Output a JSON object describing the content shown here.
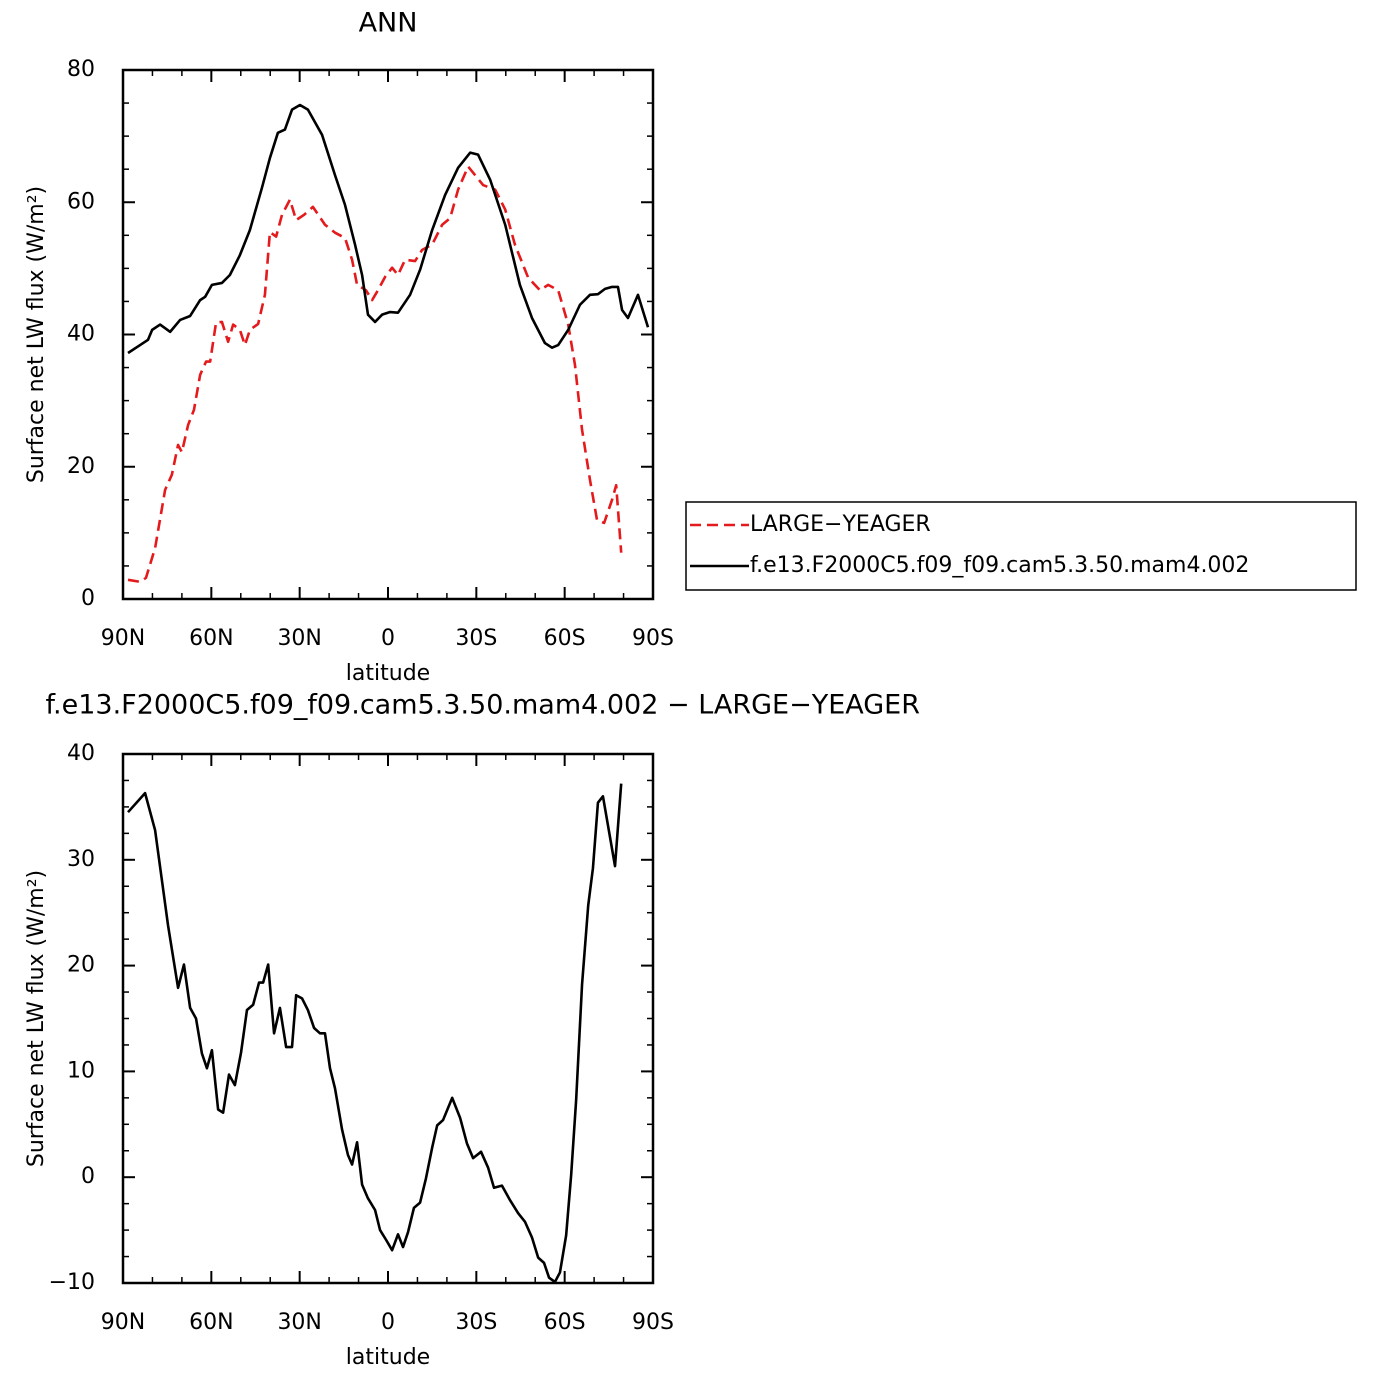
{
  "chart_data": [
    {
      "type": "line",
      "title": "ANN",
      "xlabel": "latitude",
      "ylabel": "Surface net LW flux (W/m²)",
      "xlim": [
        90,
        -90
      ],
      "xticks": [
        {
          "value": 90,
          "label": "90N"
        },
        {
          "value": 60,
          "label": "60N"
        },
        {
          "value": 30,
          "label": "30N"
        },
        0,
        {
          "value": -30,
          "label": "30S"
        },
        {
          "value": -60,
          "label": "60S"
        },
        {
          "value": -90,
          "label": "90S"
        }
      ],
      "xminor": [
        80,
        70,
        50,
        40,
        20,
        10,
        -10,
        -20,
        -40,
        -50,
        -70,
        -80
      ],
      "ylim": [
        0,
        80
      ],
      "yticks": [
        0,
        20,
        40,
        60,
        80
      ],
      "yminor": [
        5,
        10,
        15,
        25,
        30,
        35,
        45,
        50,
        55,
        65,
        70,
        75
      ],
      "series": [
        {
          "name": "LARGE−YEAGER",
          "color": "#e41a1c",
          "dash": true,
          "x": [
            88.3,
            84.2,
            82.2,
            79.1,
            75.7,
            73.4,
            71.3,
            70,
            67.9,
            65.9,
            63.8,
            61.8,
            60.4,
            58.4,
            56.4,
            54.3,
            52.6,
            50.3,
            48.6,
            46.9,
            44.1,
            41.8,
            40.1,
            38,
            36,
            33.3,
            31.2,
            28.5,
            25.5,
            21.4,
            18,
            14.6,
            12.2,
            10.5,
            7.5,
            5.4,
            3.4,
            1,
            -1.4,
            -3.4,
            -5.8,
            -9.2,
            -11.6,
            -15,
            -18.4,
            -21.1,
            -23.8,
            -27.2,
            -29.6,
            -32.3,
            -36.4,
            -39.8,
            -43.1,
            -47.6,
            -51.6,
            -54.4,
            -57.8,
            -61.2,
            -63.5,
            -65.9,
            -68.6,
            -71,
            -73.4,
            -76.1,
            -77.5,
            -79.2
          ],
          "values": [
            2.9,
            2.6,
            3.2,
            7.7,
            16.5,
            18.8,
            23.3,
            22.2,
            26.3,
            28.6,
            33.9,
            35.9,
            35.9,
            41.8,
            41.9,
            38.9,
            41.5,
            40.7,
            38.4,
            40.7,
            41.6,
            46,
            55.5,
            54.8,
            58.1,
            60.4,
            57.3,
            58.1,
            59.3,
            56.6,
            55.4,
            54.6,
            51.3,
            47.5,
            46.7,
            45.2,
            46.7,
            48.7,
            50.1,
            49,
            51.3,
            51.1,
            52.8,
            53.6,
            56.6,
            57.6,
            61.9,
            65.4,
            64.1,
            62.6,
            61.9,
            58.9,
            53.6,
            48.6,
            46.7,
            47.5,
            46.7,
            41.5,
            35.4,
            25.6,
            18,
            11.9,
            11.5,
            15,
            17.2,
            7
          ]
        },
        {
          "name": "f.e13.F2000C5.f09_f09.cam5.3.50.mam4.002",
          "color": "#000000",
          "dash": false,
          "x": [
            88.3,
            84.2,
            81.5,
            80.1,
            77.4,
            74,
            70.6,
            67.2,
            63.8,
            62.1,
            59.8,
            56.4,
            53.7,
            50.3,
            46.9,
            42.8,
            40.1,
            37.4,
            35,
            32.6,
            29.9,
            27.2,
            22.4,
            18,
            14.6,
            11.2,
            8.8,
            6.8,
            4.4,
            2,
            -0.7,
            -3.4,
            -7.5,
            -10.9,
            -15,
            -19.4,
            -23.8,
            -27.9,
            -30.6,
            -34.7,
            -39.8,
            -44.8,
            -48.9,
            -53.3,
            -55.7,
            -57.8,
            -61.2,
            -65.2,
            -68.6,
            -71.3,
            -73.7,
            -76.1,
            -78.1,
            -79.5,
            -81.5,
            -84.9,
            -88.3
          ],
          "values": [
            37.2,
            38.4,
            39.2,
            40.7,
            41.5,
            40.4,
            42.2,
            42.8,
            45.2,
            45.7,
            47.5,
            47.8,
            49,
            52,
            55.8,
            62.2,
            66.7,
            70.5,
            71,
            74,
            74.7,
            74,
            70.2,
            64.1,
            59.6,
            53.6,
            49,
            43,
            41.9,
            43,
            43.4,
            43.3,
            46,
            49.8,
            55.8,
            61.1,
            65.2,
            67.5,
            67.2,
            63.4,
            56.6,
            47.5,
            42.5,
            38.7,
            38,
            38.4,
            40.7,
            44.5,
            46,
            46.1,
            46.9,
            47.2,
            47.2,
            43.7,
            42.5,
            46,
            41.1
          ]
        }
      ]
    },
    {
      "type": "line",
      "title": "f.e13.F2000C5.f09_f09.cam5.3.50.mam4.002 − LARGE−YEAGER",
      "xlabel": "latitude",
      "ylabel": "Surface net LW flux (W/m²)",
      "xlim": [
        90,
        -90
      ],
      "xticks": [
        {
          "value": 90,
          "label": "90N"
        },
        {
          "value": 60,
          "label": "60N"
        },
        {
          "value": 30,
          "label": "30N"
        },
        0,
        {
          "value": -30,
          "label": "30S"
        },
        {
          "value": -60,
          "label": "60S"
        },
        {
          "value": -90,
          "label": "90S"
        }
      ],
      "xminor": [
        80,
        70,
        50,
        40,
        20,
        10,
        -10,
        -20,
        -40,
        -50,
        -70,
        -80
      ],
      "ylim": [
        -10,
        40
      ],
      "yticks": [
        {
          "value": -10,
          "label": "−10"
        },
        0,
        10,
        20,
        30,
        40
      ],
      "yminor": [
        -7.5,
        -5,
        -2.5,
        2.5,
        5,
        7.5,
        12.5,
        15,
        17.5,
        22.5,
        25,
        27.5,
        32.5,
        35,
        37.5
      ],
      "color": "#000000",
      "x": [
        88.3,
        82.5,
        79.1,
        74.7,
        71.3,
        69.3,
        67.2,
        65.2,
        63.2,
        61.5,
        59.8,
        57.7,
        56,
        54,
        52,
        49.9,
        47.9,
        45.8,
        43.8,
        42.4,
        40.7,
        38.7,
        36.7,
        34.6,
        32.6,
        31.2,
        29.2,
        27.2,
        25.1,
        23.1,
        21.4,
        19.7,
        18,
        15.6,
        13.6,
        12.2,
        10.5,
        8.8,
        6.8,
        4.4,
        2.7,
        0.7,
        -1.4,
        -3.4,
        -5.1,
        -6.8,
        -8.8,
        -10.9,
        -12.9,
        -15,
        -16.7,
        -18.7,
        -21.8,
        -24.5,
        -26.8,
        -28.9,
        -31.6,
        -34,
        -36,
        -38.7,
        -41.5,
        -44.2,
        -46.5,
        -48.9,
        -51,
        -53,
        -54.7,
        -56.7,
        -58.4,
        -60.5,
        -62.2,
        -63.9,
        -65.9,
        -68,
        -69.6,
        -71.3,
        -73,
        -77.1,
        -79.2
      ],
      "values": [
        34.5,
        36.3,
        32.8,
        23.8,
        17.9,
        20.1,
        16,
        15,
        11.7,
        10.3,
        12,
        6.4,
        6.1,
        9.7,
        8.7,
        11.8,
        15.8,
        16.3,
        18.4,
        18.4,
        20.1,
        13.6,
        16,
        12.3,
        12.3,
        17.2,
        16.9,
        15.8,
        14.1,
        13.6,
        13.6,
        10.3,
        8.4,
        4.5,
        2.1,
        1.2,
        3.3,
        -0.7,
        -2,
        -3.1,
        -5,
        -5.9,
        -6.9,
        -5.4,
        -6.6,
        -5.2,
        -2.9,
        -2.4,
        -0.1,
        2.8,
        4.9,
        5.4,
        7.5,
        5.6,
        3.2,
        1.8,
        2.4,
        0.9,
        -1,
        -0.8,
        -2.2,
        -3.4,
        -4.2,
        -5.7,
        -7.6,
        -8.1,
        -9.5,
        -9.9,
        -9,
        -5.5,
        0.2,
        7.3,
        18.2,
        25.7,
        29.2,
        35.4,
        36,
        29.4,
        37.2
      ]
    }
  ]
}
